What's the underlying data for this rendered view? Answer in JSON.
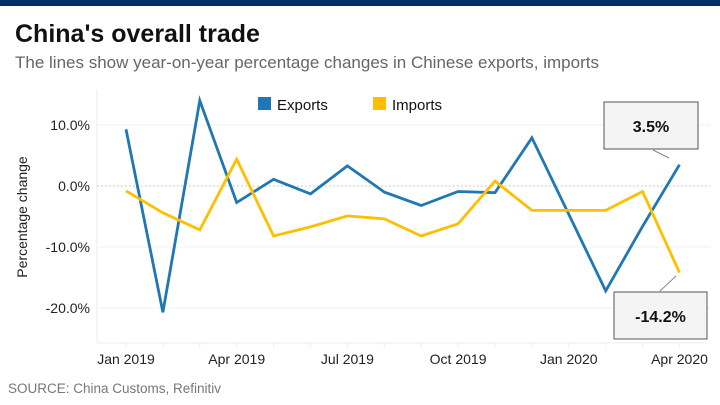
{
  "title": "China's overall trade",
  "subtitle": "The lines show year-on-year percentage changes in Chinese exports, imports",
  "source": "SOURCE: China Customs, Refinitiv",
  "chart_data": {
    "type": "line",
    "ylabel": "Percentage change",
    "xlabel": "",
    "ylim": [
      -26,
      15
    ],
    "y_ticks": [
      10,
      0,
      -10,
      -20
    ],
    "y_tick_labels": [
      "10.0%",
      "0.0%",
      "-10.0%",
      "-20.0%"
    ],
    "zero_line": "dotted",
    "grid": true,
    "legend_position": "top",
    "x": [
      "Jan 2019",
      "Feb 2019",
      "Mar 2019",
      "Apr 2019",
      "May 2019",
      "Jun 2019",
      "Jul 2019",
      "Aug 2019",
      "Sep 2019",
      "Oct 2019",
      "Nov 2019",
      "Dec 2019",
      "Jan 2020",
      "Feb 2020",
      "Mar 2020",
      "Apr 2020"
    ],
    "x_tick_labels": [
      "Jan 2019",
      "Apr 2019",
      "Jul 2019",
      "Oct 2019",
      "Jan 2020",
      "Apr 2020"
    ],
    "x_tick_label_index": [
      0,
      3,
      6,
      9,
      12,
      15
    ],
    "series": [
      {
        "name": "Exports",
        "color": "#1f77b4",
        "values": [
          9.3,
          -20.7,
          14.0,
          -2.7,
          1.1,
          -1.3,
          3.3,
          -1.0,
          -3.2,
          -0.9,
          -1.1,
          7.9,
          null,
          -17.2,
          -6.6,
          3.5
        ]
      },
      {
        "name": "Imports",
        "color": "#ffbf00",
        "values": [
          -0.8,
          -4.4,
          -7.2,
          4.4,
          -8.2,
          -6.7,
          -4.9,
          -5.4,
          -8.2,
          -6.2,
          0.8,
          -4.0,
          null,
          -4.0,
          -0.9,
          -14.2
        ]
      }
    ],
    "annotations": [
      {
        "series": "Exports",
        "x": "Apr 2020",
        "text": "3.5%"
      },
      {
        "series": "Imports",
        "x": "Apr 2020",
        "text": "-14.2%"
      }
    ]
  }
}
